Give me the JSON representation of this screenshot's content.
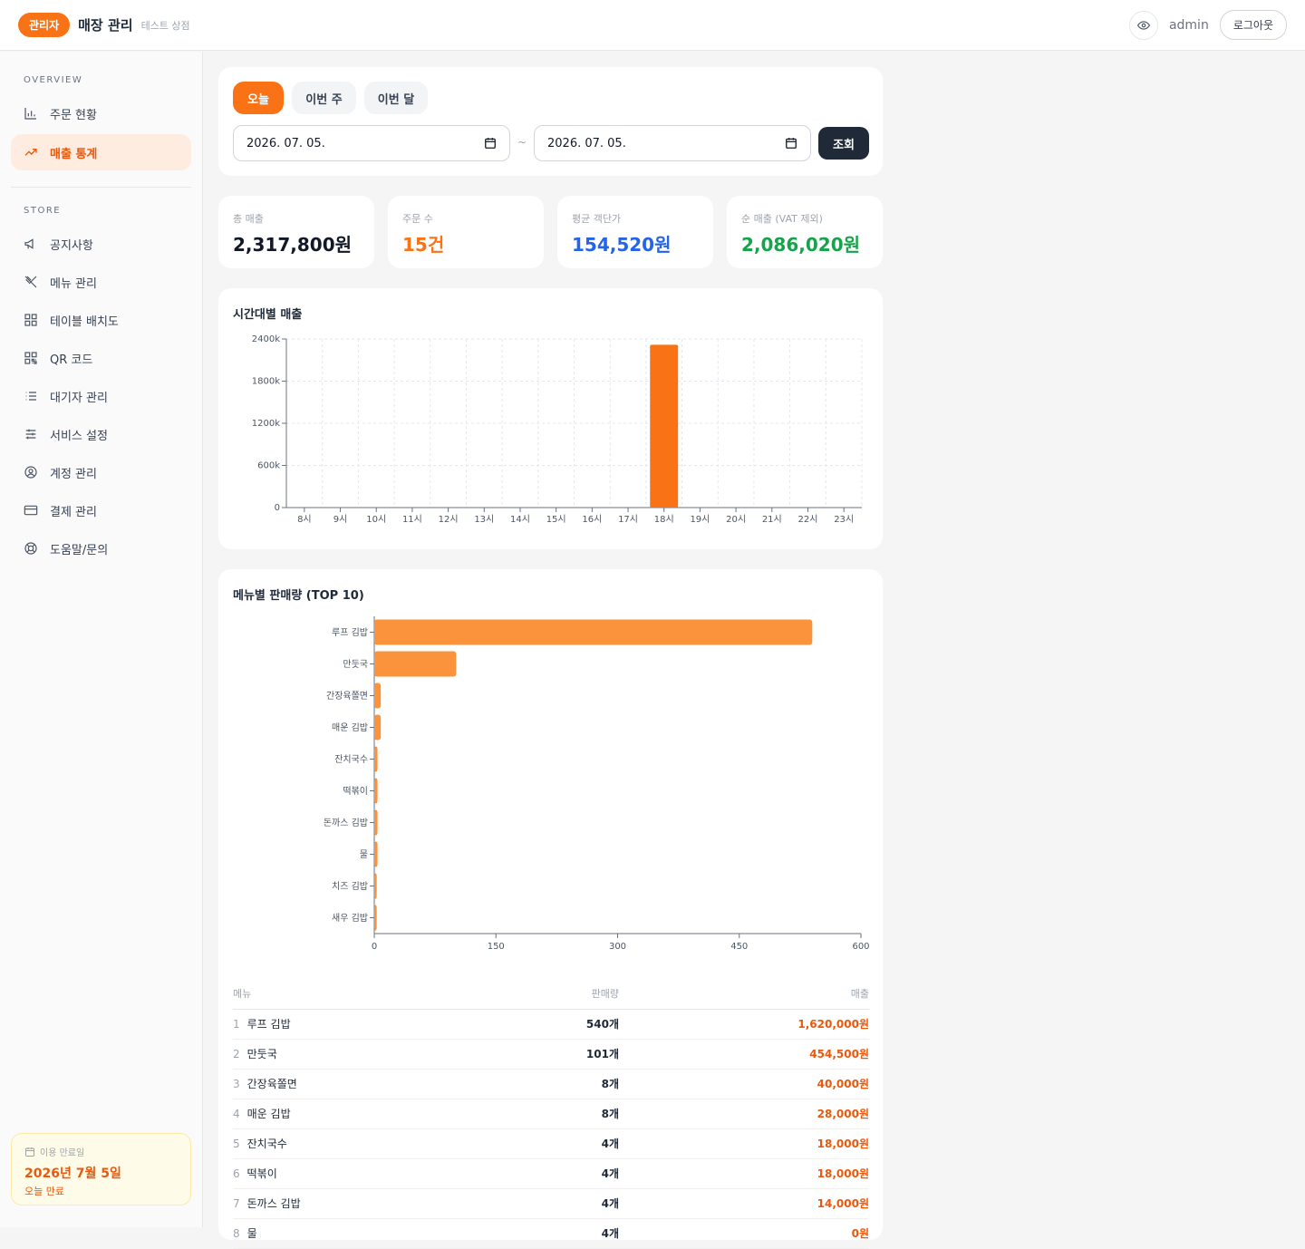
{
  "header": {
    "badge": "관리자",
    "title": "매장 관리",
    "store_name": "테스트 상점",
    "user": "admin",
    "logout_label": "로그아웃"
  },
  "sidebar": {
    "overview_label": "OVERVIEW",
    "store_label": "STORE",
    "overview_items": [
      {
        "label": "주문 현황",
        "icon": "bar-chart-icon"
      },
      {
        "label": "매출 통계",
        "icon": "trending-up-icon"
      }
    ],
    "store_items": [
      {
        "label": "공지사항",
        "icon": "megaphone-icon"
      },
      {
        "label": "메뉴 관리",
        "icon": "utensils-icon"
      },
      {
        "label": "테이블 배치도",
        "icon": "grid-icon"
      },
      {
        "label": "QR 코드",
        "icon": "qr-code-icon"
      },
      {
        "label": "대기자 관리",
        "icon": "list-icon"
      },
      {
        "label": "서비스 설정",
        "icon": "sliders-icon"
      },
      {
        "label": "계정 관리",
        "icon": "user-circle-icon"
      },
      {
        "label": "결제 관리",
        "icon": "credit-card-icon"
      },
      {
        "label": "도움말/문의",
        "icon": "lifebuoy-icon"
      }
    ],
    "expiry": {
      "label": "이용 만료일",
      "date": "2026년 7월 5일",
      "note": "오늘 만료"
    }
  },
  "filters": {
    "tabs": [
      "오늘",
      "이번 주",
      "이번 달"
    ],
    "active_tab": "오늘",
    "start_date": "2026. 07. 05.",
    "end_date": "2026. 07. 05.",
    "separator": "~",
    "query_label": "조회"
  },
  "stats": [
    {
      "label": "총 매출",
      "value": "2,317,800원",
      "color": "#111827"
    },
    {
      "label": "주문 수",
      "value": "15건",
      "color": "#f97316"
    },
    {
      "label": "평균 객단가",
      "value": "154,520원",
      "color": "#2563eb"
    },
    {
      "label": "순 매출 (VAT 제외)",
      "value": "2,086,020원",
      "color": "#16a34a"
    }
  ],
  "hourly_chart": {
    "title": "시간대별 매출"
  },
  "menu_chart": {
    "title": "메뉴별 판매량 (TOP 10)"
  },
  "chart_data": [
    {
      "type": "bar",
      "title": "시간대별 매출",
      "categories": [
        "8시",
        "9시",
        "10시",
        "11시",
        "12시",
        "13시",
        "14시",
        "15시",
        "16시",
        "17시",
        "18시",
        "19시",
        "20시",
        "21시",
        "22시",
        "23시"
      ],
      "values": [
        0,
        0,
        0,
        0,
        0,
        0,
        0,
        0,
        0,
        0,
        2317800,
        0,
        0,
        0,
        0,
        0
      ],
      "ylim": [
        0,
        2400000
      ],
      "yticks": [
        0,
        600000,
        1200000,
        1800000,
        2400000
      ],
      "ytick_labels": [
        "0",
        "600k",
        "1200k",
        "1800k",
        "2400k"
      ],
      "grid": true,
      "color": "#f97316"
    },
    {
      "type": "bar",
      "orientation": "horizontal",
      "title": "메뉴별 판매량 (TOP 10)",
      "categories": [
        "루프 김밥",
        "만둣국",
        "간장육쫄면",
        "매운 김밥",
        "잔치국수",
        "떡볶이",
        "돈까스 김밥",
        "물",
        "치즈 김밥",
        "새우 김밥"
      ],
      "values": [
        540,
        101,
        8,
        8,
        4,
        4,
        4,
        4,
        3,
        3
      ],
      "xlim": [
        0,
        600
      ],
      "xticks": [
        0,
        150,
        300,
        450,
        600
      ],
      "grid": false,
      "color": "#fb923c"
    }
  ],
  "menu_table": {
    "headers": [
      "메뉴",
      "판매량",
      "매출"
    ],
    "rows": [
      {
        "rank": "1",
        "name": "루프 김밥",
        "qty": "540개",
        "sales": "1,620,000원"
      },
      {
        "rank": "2",
        "name": "만둣국",
        "qty": "101개",
        "sales": "454,500원"
      },
      {
        "rank": "3",
        "name": "간장육쫄면",
        "qty": "8개",
        "sales": "40,000원"
      },
      {
        "rank": "4",
        "name": "매운 김밥",
        "qty": "8개",
        "sales": "28,000원"
      },
      {
        "rank": "5",
        "name": "잔치국수",
        "qty": "4개",
        "sales": "18,000원"
      },
      {
        "rank": "6",
        "name": "떡볶이",
        "qty": "4개",
        "sales": "18,000원"
      },
      {
        "rank": "7",
        "name": "돈까스 김밥",
        "qty": "4개",
        "sales": "14,000원"
      },
      {
        "rank": "8",
        "name": "물",
        "qty": "4개",
        "sales": "0원"
      }
    ]
  }
}
